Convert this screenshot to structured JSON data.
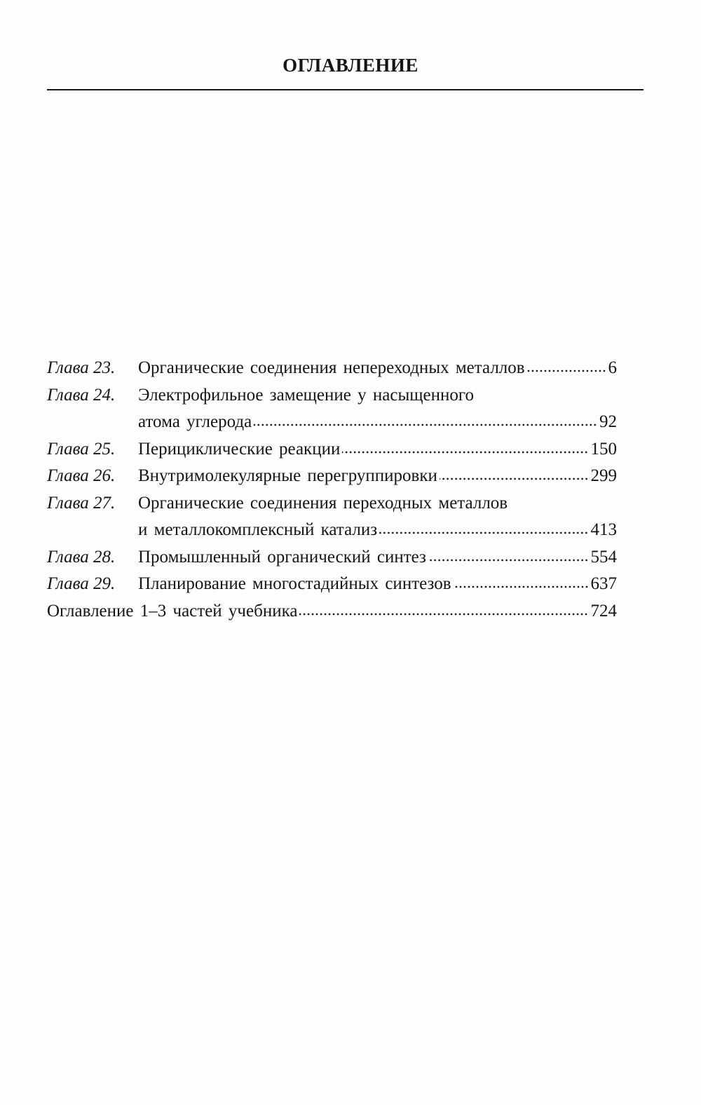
{
  "header": {
    "title": "ОГЛАВЛЕНИЕ"
  },
  "toc": [
    {
      "label": "Глава 23.",
      "lines": [
        "Органические соединения непереходных металлов"
      ],
      "page": "6"
    },
    {
      "label": "Глава 24.",
      "lines": [
        "Электрофильное замещение у насыщенного",
        "атома углерода"
      ],
      "page": "92"
    },
    {
      "label": "Глава 25.",
      "lines": [
        "Перициклические реакции"
      ],
      "page": "150"
    },
    {
      "label": "Глава 26.",
      "lines": [
        "Внутримолекулярные перегруппировки"
      ],
      "page": "299"
    },
    {
      "label": "Глава 27.",
      "lines": [
        "Органические соединения переходных металлов",
        "и металлокомплексный катализ"
      ],
      "page": "413"
    },
    {
      "label": "Глава 28.",
      "lines": [
        "Промышленный органический синтез"
      ],
      "page": "554"
    },
    {
      "label": "Глава 29.",
      "lines": [
        "Планирование многостадийных синтезов"
      ],
      "page": "637"
    }
  ],
  "appendix": {
    "text": "Оглавление 1–3 частей учебника",
    "page": "724"
  }
}
